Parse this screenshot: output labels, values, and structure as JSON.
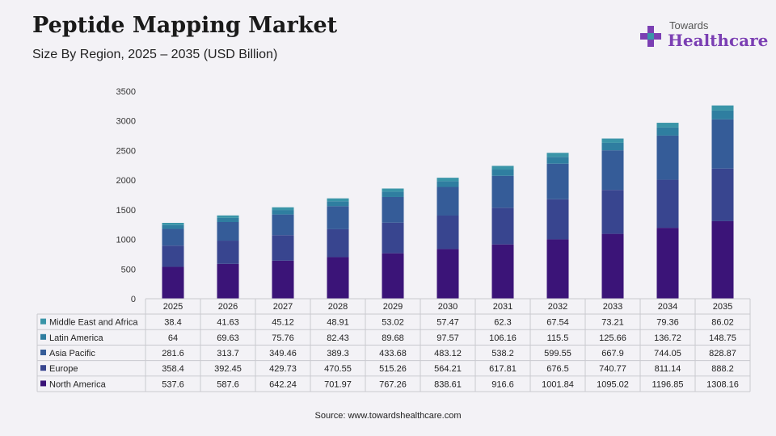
{
  "header": {
    "title": "Peptide Mapping Market",
    "subtitle": "Size By Region, 2025 – 2035 (USD Billion)"
  },
  "logo": {
    "top_word": "Towards",
    "brand": "Healthcare",
    "brand_color": "#7b3fb3",
    "icon": "medical-cross-icon"
  },
  "source": "Source: www.towardshealthcare.com",
  "chart_data": {
    "type": "bar",
    "stacked": true,
    "title": "Peptide Mapping Market",
    "subtitle": "Size By Region, 2025 – 2035 (USD Billion)",
    "categories": [
      "2025",
      "2026",
      "2027",
      "2028",
      "2029",
      "2030",
      "2031",
      "2032",
      "2033",
      "2034",
      "2035"
    ],
    "ylim": [
      0,
      3500
    ],
    "yticks": [
      0,
      500,
      1000,
      1500,
      2000,
      2500,
      3000,
      3500
    ],
    "grid": false,
    "legend": "data-table",
    "series": [
      {
        "name": "North America",
        "color": "#3b1478",
        "values": [
          537.6,
          587.6,
          642.24,
          701.97,
          767.26,
          838.61,
          916.6,
          1001.84,
          1095.02,
          1196.85,
          1308.16
        ],
        "labels": [
          "537.6",
          "587.6",
          "642.24",
          "701.97",
          "767.26",
          "838.61",
          "916.6",
          "1001.84",
          "1095.02",
          "1196.85",
          "1308.16"
        ]
      },
      {
        "name": "Europe",
        "color": "#38458f",
        "values": [
          358.4,
          392.45,
          429.73,
          470.55,
          515.26,
          564.21,
          617.81,
          676.5,
          740.77,
          811.14,
          888.2
        ],
        "labels": [
          "358.4",
          "392.45",
          "429.73",
          "470.55",
          "515.26",
          "564.21",
          "617.81",
          "676.5",
          "740.77",
          "811.14",
          "888.2"
        ]
      },
      {
        "name": "Asia Pacific",
        "color": "#355c98",
        "values": [
          281.6,
          313.7,
          349.46,
          389.3,
          433.68,
          483.12,
          538.2,
          599.55,
          667.9,
          744.05,
          828.87
        ],
        "labels": [
          "281.6",
          "313.7",
          "349.46",
          "389.3",
          "433.68",
          "483.12",
          "538.2",
          "599.55",
          "667.9",
          "744.05",
          "828.87"
        ]
      },
      {
        "name": "Latin America",
        "color": "#2f7ea0",
        "values": [
          64,
          69.63,
          75.76,
          82.43,
          89.68,
          97.57,
          106.16,
          115.5,
          125.66,
          136.72,
          148.75
        ],
        "labels": [
          "64",
          "69.63",
          "75.76",
          "82.43",
          "89.68",
          "97.57",
          "106.16",
          "115.5",
          "125.66",
          "136.72",
          "148.75"
        ]
      },
      {
        "name": "Middle East and Africa",
        "color": "#3a95a8",
        "values": [
          38.4,
          41.63,
          45.12,
          48.91,
          53.02,
          57.47,
          62.3,
          67.54,
          73.21,
          79.36,
          86.02
        ],
        "labels": [
          "38.4",
          "41.63",
          "45.12",
          "48.91",
          "53.02",
          "57.47",
          "62.3",
          "67.54",
          "73.21",
          "79.36",
          "86.02"
        ]
      }
    ]
  }
}
